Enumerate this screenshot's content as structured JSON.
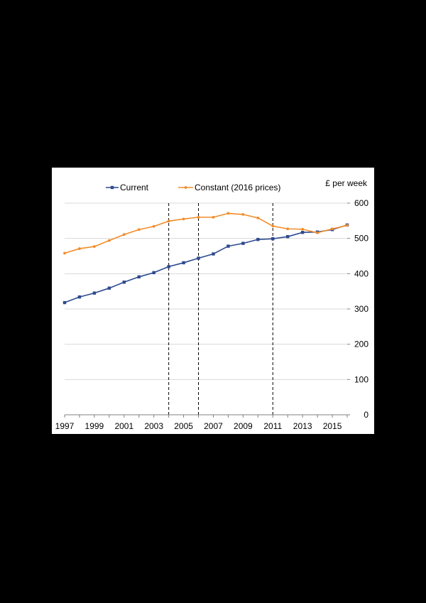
{
  "chart_data": {
    "type": "line",
    "title": "",
    "xlabel": "",
    "ylabel": "£ per week",
    "x": [
      1997,
      1998,
      1999,
      2000,
      2001,
      2002,
      2003,
      2004,
      2005,
      2006,
      2007,
      2008,
      2009,
      2010,
      2011,
      2012,
      2013,
      2014,
      2015,
      2016
    ],
    "xticks": [
      "1997",
      "1999",
      "2001",
      "2003",
      "2005",
      "2007",
      "2009",
      "2011",
      "2013",
      "2015"
    ],
    "xlim": [
      1997,
      2016
    ],
    "ylim": [
      0,
      600
    ],
    "yticks": [
      "0",
      "100",
      "200",
      "300",
      "400",
      "500",
      "600"
    ],
    "grid": "horizontal",
    "legend": "top",
    "vlines": [
      2004,
      2006,
      2011
    ],
    "series": [
      {
        "name": "Current",
        "color": "#2e4a8f",
        "marker": "square",
        "values": [
          318,
          334,
          345,
          359,
          376,
          391,
          403,
          420,
          431,
          444,
          456,
          478,
          486,
          497,
          499,
          505,
          517,
          518,
          525,
          538
        ]
      },
      {
        "name": "Constant (2016 prices)",
        "color": "#f28c28",
        "marker": "diamond",
        "values": [
          458,
          471,
          477,
          494,
          511,
          525,
          534,
          549,
          555,
          560,
          560,
          571,
          568,
          558,
          535,
          527,
          526,
          516,
          527,
          537
        ]
      }
    ]
  }
}
